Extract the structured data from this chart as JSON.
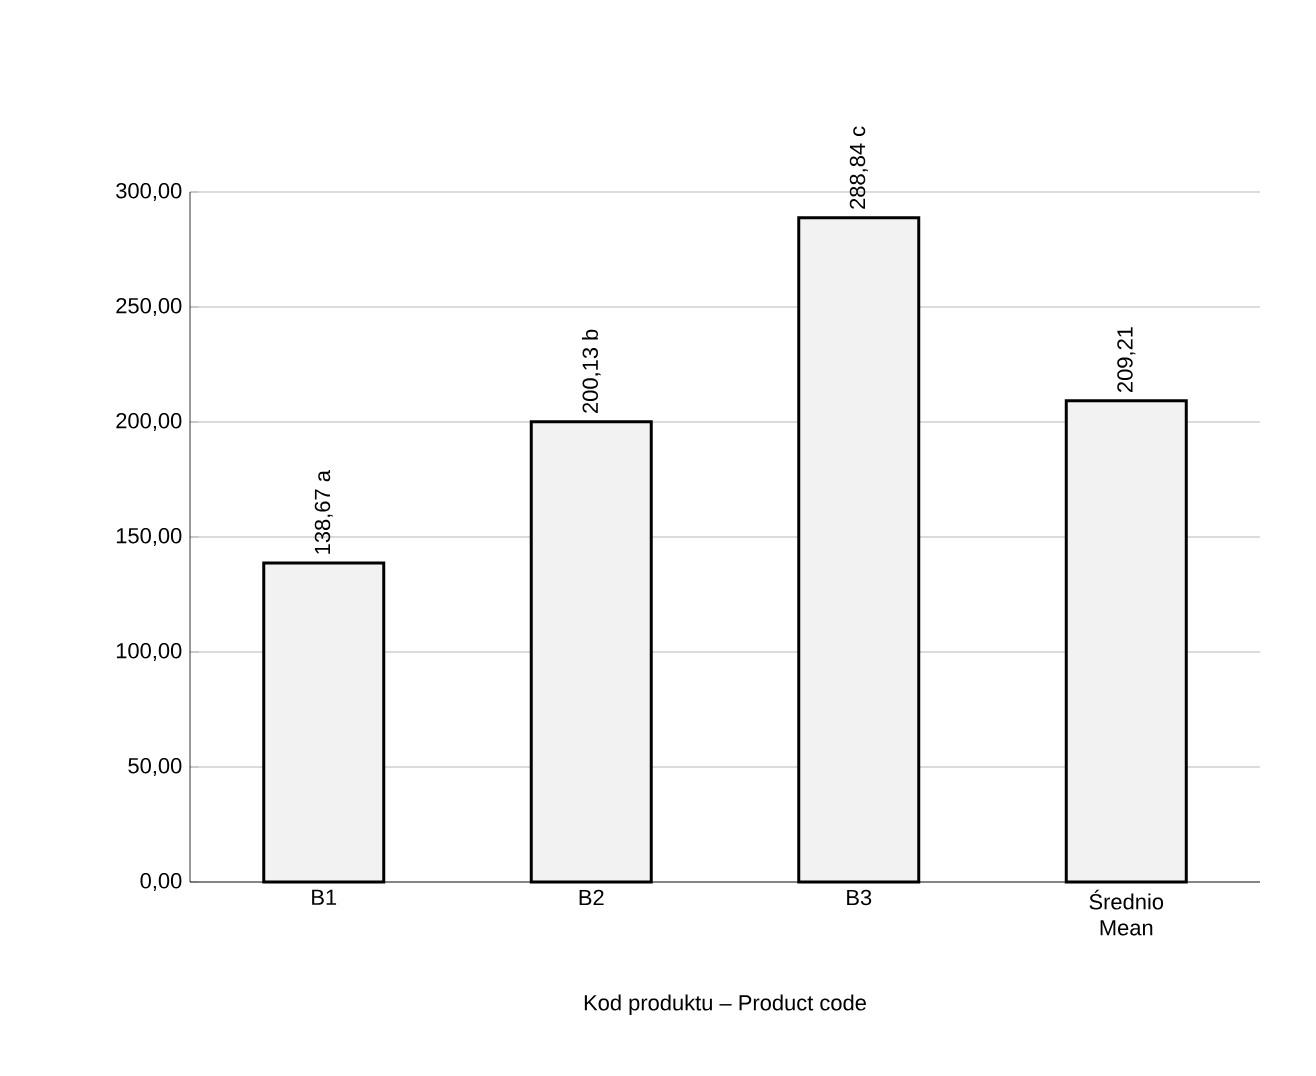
{
  "chart_data": {
    "type": "bar",
    "xlabel": "Kod produktu – Product code",
    "categories": [
      "B1",
      "B2",
      "B3",
      "Średnio Mean"
    ],
    "values": [
      138.67,
      200.13,
      288.84,
      209.21
    ],
    "value_labels": [
      "138,67 a",
      "200,13 b",
      "288,84 c",
      "209,21"
    ],
    "color": "#f2f2f2",
    "ylim": [
      0,
      300
    ],
    "yticks": [
      {
        "value": 0,
        "label": "0,00"
      },
      {
        "value": 50,
        "label": "50,00"
      },
      {
        "value": 100,
        "label": "100,00"
      },
      {
        "value": 150,
        "label": "150,00"
      },
      {
        "value": 200,
        "label": "200,00"
      },
      {
        "value": 250,
        "label": "250,00"
      },
      {
        "value": 300,
        "label": "300,00"
      }
    ],
    "grid": "y"
  }
}
